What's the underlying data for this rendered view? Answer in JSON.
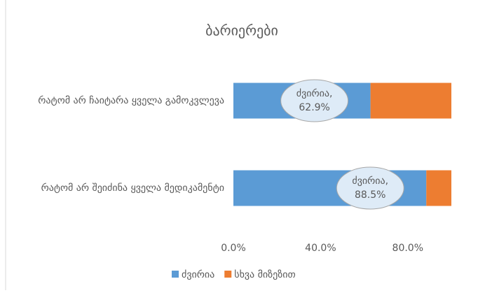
{
  "chart_data": {
    "type": "stacked_barh",
    "title": "ბარიერები",
    "categories": [
      "რატომ არ ჩაიტარა ყველა გამოკვლევა",
      "რატომ არ შეიძინა ყველა მედიკამენტი"
    ],
    "series": [
      {
        "name": "ძვირია",
        "color": "#5b9bd5",
        "values": [
          62.9,
          88.5
        ],
        "value_labels": [
          "ძვირია, 62.9%",
          "ძვირია, 88.5%"
        ]
      },
      {
        "name": "სხვა მიზეზით",
        "color": "#ed7d31",
        "values": [
          37.1,
          11.5
        ]
      }
    ],
    "xlim": [
      0,
      100
    ],
    "xticks": [
      {
        "value": 0,
        "label": "0.0%"
      },
      {
        "value": 40,
        "label": "40.0%"
      },
      {
        "value": 80,
        "label": "80.0%"
      }
    ],
    "grid": false,
    "legend": "bottom"
  }
}
